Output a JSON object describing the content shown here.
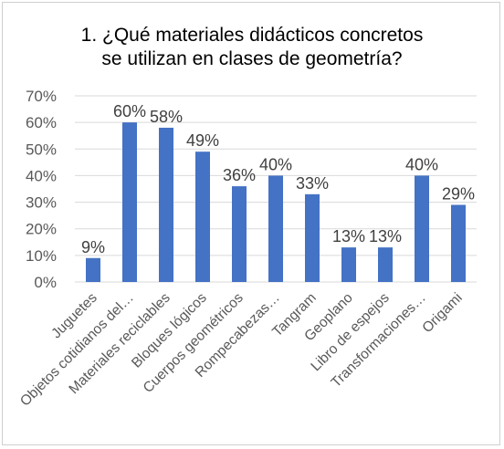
{
  "chart_data": {
    "type": "bar",
    "title_lines": [
      "1. ¿Qué materiales didácticos concretos",
      "se utilizan en clases de geometría?"
    ],
    "categories": [
      "Juguetes",
      "Objetos cotidianos del…",
      "Materiales reciclables",
      "Bloques lógicos",
      "Cuerpos geométricos",
      "Rompecabezas…",
      "Tangram",
      "Geoplano",
      "Libro de espejos",
      "Transformaciones…",
      "Origami"
    ],
    "values": [
      9,
      60,
      58,
      49,
      36,
      40,
      33,
      13,
      13,
      40,
      29
    ],
    "data_labels": [
      "9%",
      "60%",
      "58%",
      "49%",
      "36%",
      "40%",
      "33%",
      "13%",
      "13%",
      "40%",
      "29%"
    ],
    "yticks": [
      "0%",
      "10%",
      "20%",
      "30%",
      "40%",
      "50%",
      "60%",
      "70%"
    ],
    "ylim": [
      0,
      70
    ],
    "grid": true,
    "legend": "none",
    "bar_color": "#4472c4",
    "grid_color": "#d9d9d9"
  }
}
